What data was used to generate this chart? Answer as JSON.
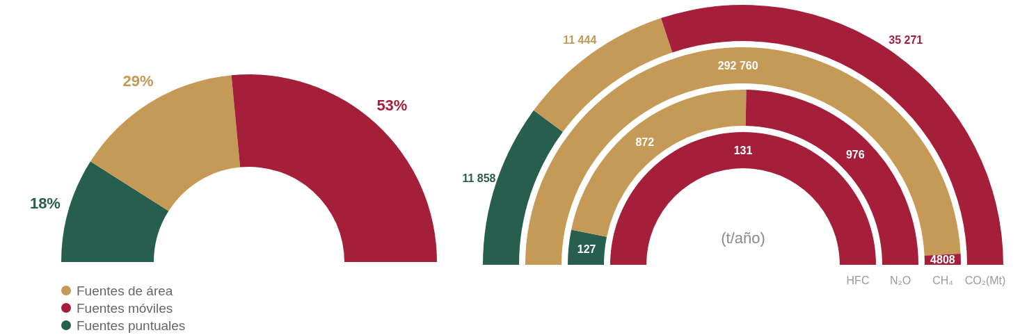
{
  "chart_data": [
    {
      "type": "donut",
      "categories": [
        "Fuentes de área",
        "Fuentes móviles",
        "Fuentes puntuales"
      ],
      "values": [
        29,
        53,
        18
      ],
      "colors": [
        "#c49a56",
        "#a51f3a",
        "#275e4e"
      ],
      "value_labels": [
        "29%",
        "53%",
        "18%"
      ],
      "legend": "bottom left"
    },
    {
      "type": "donut",
      "categories": [
        null,
        null,
        null
      ],
      "colors": [
        "#c49a56",
        "#a51f3a",
        "#275e4e"
      ],
      "annotations": [
        "(t/año)"
      ],
      "series": [
        {
          "name": "HFC",
          "values": [
            null,
            131,
            null
          ],
          "value_labels": [
            null,
            "131",
            null
          ]
        },
        {
          "name": "N₂O",
          "values": [
            872,
            976,
            127
          ],
          "value_labels": [
            "872",
            "976",
            "127"
          ]
        },
        {
          "name": "CH₄",
          "values": [
            292760,
            4808,
            null
          ],
          "value_labels": [
            "292 760",
            "4808",
            null
          ]
        },
        {
          "name": "CO₂(Mt)",
          "values": [
            11444,
            35271,
            11858
          ],
          "value_labels": [
            "11 444",
            "35 271",
            "11 858"
          ]
        }
      ]
    }
  ]
}
